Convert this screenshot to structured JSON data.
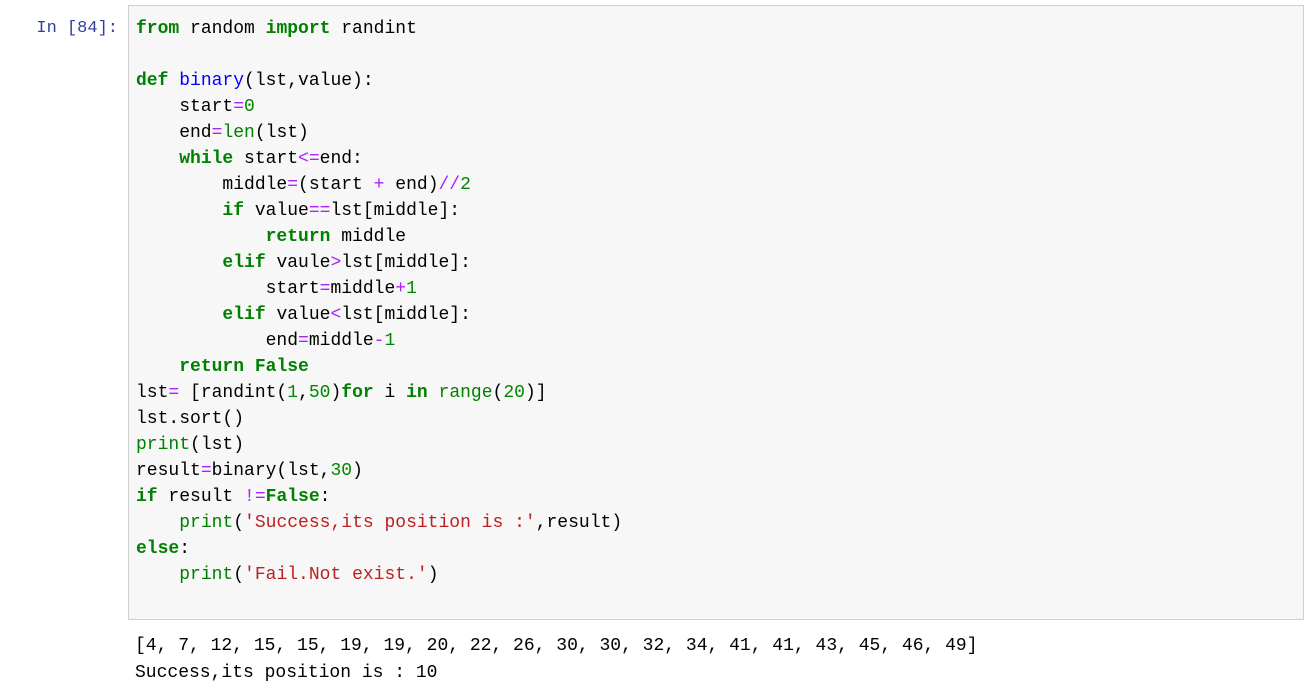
{
  "cell": {
    "prompt": "In [84]:",
    "language": "python",
    "token_classes": {
      "kw": "keyword",
      "bi": "builtin",
      "nu": "number",
      "op": "operator",
      "st": "string",
      "df": "function-definition",
      "pl": "plain"
    },
    "code_lines": [
      [
        [
          "kw",
          "from"
        ],
        [
          "pl",
          " random "
        ],
        [
          "kw",
          "import"
        ],
        [
          "pl",
          " randint"
        ]
      ],
      [],
      [
        [
          "kw",
          "def"
        ],
        [
          "pl",
          " "
        ],
        [
          "df",
          "binary"
        ],
        [
          "pl",
          "(lst,value):"
        ]
      ],
      [
        [
          "pl",
          "    start"
        ],
        [
          "op",
          "="
        ],
        [
          "nu",
          "0"
        ]
      ],
      [
        [
          "pl",
          "    end"
        ],
        [
          "op",
          "="
        ],
        [
          "bi",
          "len"
        ],
        [
          "pl",
          "(lst)"
        ]
      ],
      [
        [
          "pl",
          "    "
        ],
        [
          "kw",
          "while"
        ],
        [
          "pl",
          " start"
        ],
        [
          "op",
          "<="
        ],
        [
          "pl",
          "end:"
        ]
      ],
      [
        [
          "pl",
          "        middle"
        ],
        [
          "op",
          "="
        ],
        [
          "pl",
          "(start "
        ],
        [
          "op",
          "+"
        ],
        [
          "pl",
          " end)"
        ],
        [
          "op",
          "//"
        ],
        [
          "nu",
          "2"
        ]
      ],
      [
        [
          "pl",
          "        "
        ],
        [
          "kw",
          "if"
        ],
        [
          "pl",
          " value"
        ],
        [
          "op",
          "=="
        ],
        [
          "pl",
          "lst[middle]:"
        ]
      ],
      [
        [
          "pl",
          "            "
        ],
        [
          "kw",
          "return"
        ],
        [
          "pl",
          " middle"
        ]
      ],
      [
        [
          "pl",
          "        "
        ],
        [
          "kw",
          "elif"
        ],
        [
          "pl",
          " vaule"
        ],
        [
          "op",
          ">"
        ],
        [
          "pl",
          "lst[middle]:"
        ]
      ],
      [
        [
          "pl",
          "            start"
        ],
        [
          "op",
          "="
        ],
        [
          "pl",
          "middle"
        ],
        [
          "op",
          "+"
        ],
        [
          "nu",
          "1"
        ]
      ],
      [
        [
          "pl",
          "        "
        ],
        [
          "kw",
          "elif"
        ],
        [
          "pl",
          " value"
        ],
        [
          "op",
          "<"
        ],
        [
          "pl",
          "lst[middle]:"
        ]
      ],
      [
        [
          "pl",
          "            end"
        ],
        [
          "op",
          "="
        ],
        [
          "pl",
          "middle"
        ],
        [
          "op",
          "-"
        ],
        [
          "nu",
          "1"
        ]
      ],
      [
        [
          "pl",
          "    "
        ],
        [
          "kw",
          "return"
        ],
        [
          "pl",
          " "
        ],
        [
          "kw",
          "False"
        ]
      ],
      [
        [
          "pl",
          "lst"
        ],
        [
          "op",
          "="
        ],
        [
          "pl",
          " [randint("
        ],
        [
          "nu",
          "1"
        ],
        [
          "pl",
          ","
        ],
        [
          "nu",
          "50"
        ],
        [
          "pl",
          ")"
        ],
        [
          "kw",
          "for"
        ],
        [
          "pl",
          " i "
        ],
        [
          "kw",
          "in"
        ],
        [
          "pl",
          " "
        ],
        [
          "bi",
          "range"
        ],
        [
          "pl",
          "("
        ],
        [
          "nu",
          "20"
        ],
        [
          "pl",
          ")]"
        ]
      ],
      [
        [
          "pl",
          "lst.sort()"
        ]
      ],
      [
        [
          "bi",
          "print"
        ],
        [
          "pl",
          "(lst)"
        ]
      ],
      [
        [
          "pl",
          "result"
        ],
        [
          "op",
          "="
        ],
        [
          "pl",
          "binary(lst,"
        ],
        [
          "nu",
          "30"
        ],
        [
          "pl",
          ")"
        ]
      ],
      [
        [
          "kw",
          "if"
        ],
        [
          "pl",
          " result "
        ],
        [
          "op",
          "!="
        ],
        [
          "kw",
          "False"
        ],
        [
          "pl",
          ":"
        ]
      ],
      [
        [
          "pl",
          "    "
        ],
        [
          "bi",
          "print"
        ],
        [
          "pl",
          "("
        ],
        [
          "st",
          "'Success,its position is :'"
        ],
        [
          "pl",
          ",result)"
        ]
      ],
      [
        [
          "kw",
          "else"
        ],
        [
          "pl",
          ":"
        ]
      ],
      [
        [
          "pl",
          "    "
        ],
        [
          "bi",
          "print"
        ],
        [
          "pl",
          "("
        ],
        [
          "st",
          "'Fail.Not exist.'"
        ],
        [
          "pl",
          ")"
        ]
      ],
      []
    ],
    "output_lines": [
      "[4, 7, 12, 15, 15, 19, 19, 20, 22, 26, 30, 30, 32, 34, 41, 41, 43, 45, 46, 49]",
      "Success,its position is : 10"
    ]
  },
  "colors": {
    "prompt": "#303F9F",
    "keyword": "#008000",
    "builtin": "#008000",
    "number": "#008800",
    "operator": "#AA22FF",
    "string": "#BA2121",
    "function_def": "#0000FF",
    "plain_text": "#000000",
    "output_text": "#000000",
    "cell_background": "#F7F7F7",
    "cell_border": "#CFCFCF",
    "page_background": "#FFFFFF"
  }
}
